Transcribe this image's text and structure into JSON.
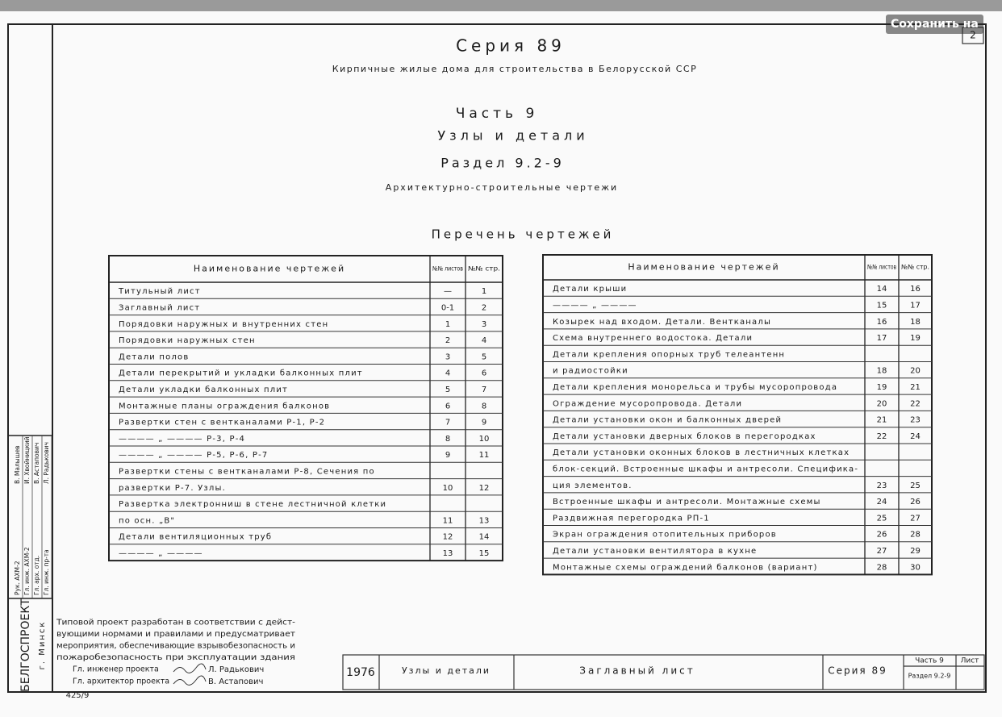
{
  "save_button": "Сохранить на",
  "sheet_number": "2",
  "header": {
    "series": "Серия 89",
    "subtitle": "Кирпичные жилые дома для строительства в Белорусской ССР",
    "part": "Часть 9",
    "part_title": "Узлы и детали",
    "section": "Раздел 9.2-9",
    "section_title": "Архитектурно-строительные чертежи",
    "list_title": "Перечень чертежей"
  },
  "tables": [
    {
      "columns": [
        "Наименование чертежей",
        "№№ листов",
        "№№ стр."
      ],
      "rows": [
        {
          "name": "Титульный лист",
          "sheet": "—",
          "page": "1"
        },
        {
          "name": "Заглавный лист",
          "sheet": "0-1",
          "page": "2"
        },
        {
          "name": "Порядовки наружных и внутренних стен",
          "sheet": "1",
          "page": "3"
        },
        {
          "name": "Порядовки наружных стен",
          "sheet": "2",
          "page": "4"
        },
        {
          "name": "Детали полов",
          "sheet": "3",
          "page": "5"
        },
        {
          "name": "Детали перекрытий и укладки балконных плит",
          "sheet": "4",
          "page": "6"
        },
        {
          "name": "Детали укладки балконных плит",
          "sheet": "5",
          "page": "7"
        },
        {
          "name": "Монтажные планы ограждения балконов",
          "sheet": "6",
          "page": "8"
        },
        {
          "name": "Развертки стен с вентканалами Р-1, Р-2",
          "sheet": "7",
          "page": "9"
        },
        {
          "name": "———— „ ————    Р-3, Р-4",
          "sheet": "8",
          "page": "10"
        },
        {
          "name": "———— „ ————    Р-5, Р-6, Р-7",
          "sheet": "9",
          "page": "11"
        },
        {
          "name": "Развертки стены с вентканалами Р-8, Сечения по"
        },
        {
          "name": "развертки Р-7. Узлы.",
          "sheet": "10",
          "page": "12"
        },
        {
          "name": "Развертка электронниш в стене лестничной клетки"
        },
        {
          "name": "по осн. „В\"",
          "sheet": "11",
          "page": "13"
        },
        {
          "name": "Детали вентиляционных труб",
          "sheet": "12",
          "page": "14"
        },
        {
          "name": "———— „ ————",
          "sheet": "13",
          "page": "15"
        }
      ]
    },
    {
      "columns": [
        "Наименование чертежей",
        "№№ листов",
        "№№ стр."
      ],
      "rows": [
        {
          "name": "Детали крыши",
          "sheet": "14",
          "page": "16"
        },
        {
          "name": "———— „ ————",
          "sheet": "15",
          "page": "17"
        },
        {
          "name": "Козырек над входом. Детали. Вентканалы",
          "sheet": "16",
          "page": "18"
        },
        {
          "name": "Схема внутреннего водостока. Детали",
          "sheet": "17",
          "page": "19"
        },
        {
          "name": "Детали крепления опорных труб телеантенн"
        },
        {
          "name": "и радиостойки",
          "sheet": "18",
          "page": "20"
        },
        {
          "name": "Детали крепления монорельса и трубы мусоропровода",
          "sheet": "19",
          "page": "21"
        },
        {
          "name": "Ограждение мусоропровода. Детали",
          "sheet": "20",
          "page": "22"
        },
        {
          "name": "Детали установки окон и балконных дверей",
          "sheet": "21",
          "page": "23"
        },
        {
          "name": "Детали установки дверных блоков в перегородках",
          "sheet": "22",
          "page": "24"
        },
        {
          "name": "Детали установки оконных блоков в лестничных клетках"
        },
        {
          "name": "блок-секций. Встроенные шкафы и антресоли. Специфика-"
        },
        {
          "name": "ция элементов.",
          "sheet": "23",
          "page": "25"
        },
        {
          "name": "Встроенные шкафы и антресоли. Монтажные схемы",
          "sheet": "24",
          "page": "26"
        },
        {
          "name": "Раздвижная перегородка РП-1",
          "sheet": "25",
          "page": "27"
        },
        {
          "name": "Экран ограждения отопительных приборов",
          "sheet": "26",
          "page": "28"
        },
        {
          "name": "Детали установки вентилятора в кухне",
          "sheet": "27",
          "page": "29"
        },
        {
          "name": "Монтажные схемы ограждений балконов (вариант)",
          "sheet": "28",
          "page": "30"
        }
      ]
    }
  ],
  "note": [
    "Типовой проект разработан в соответствии с дейст-",
    "вующими нормами и правилами и предусматривает",
    "мероприятия, обеспечивающие взрывобезопасность и",
    "пожаробезопасность при эксплуатации здания"
  ],
  "signatures": [
    {
      "role": "Гл. инженер проекта",
      "name": "Л. Радькович"
    },
    {
      "role": "Гл. архитектор проекта",
      "name": "В. Астапович"
    }
  ],
  "stamp": {
    "year": "1976",
    "name": "Узлы и детали",
    "sheet_title": "Заглавный лист",
    "series": "Серия 89",
    "part": "Часть 9",
    "section": "Раздел 9.2-9",
    "sheet_label": "Лист"
  },
  "side_stamp": {
    "org": "БЕЛГОСПРОЕКТ",
    "city": "г. Минск",
    "staff": [
      {
        "role": "Рук. АХМ-2",
        "name": "В. Малышев"
      },
      {
        "role": "Гл. инж. АХМ-2",
        "name": "И. Хвойницкий"
      },
      {
        "role": "Гл. арх. отд.",
        "name": "В. Астапович"
      },
      {
        "role": "Гл. инж. пр-та",
        "name": "Л. Радькович"
      }
    ]
  },
  "archive_number": "425/9"
}
